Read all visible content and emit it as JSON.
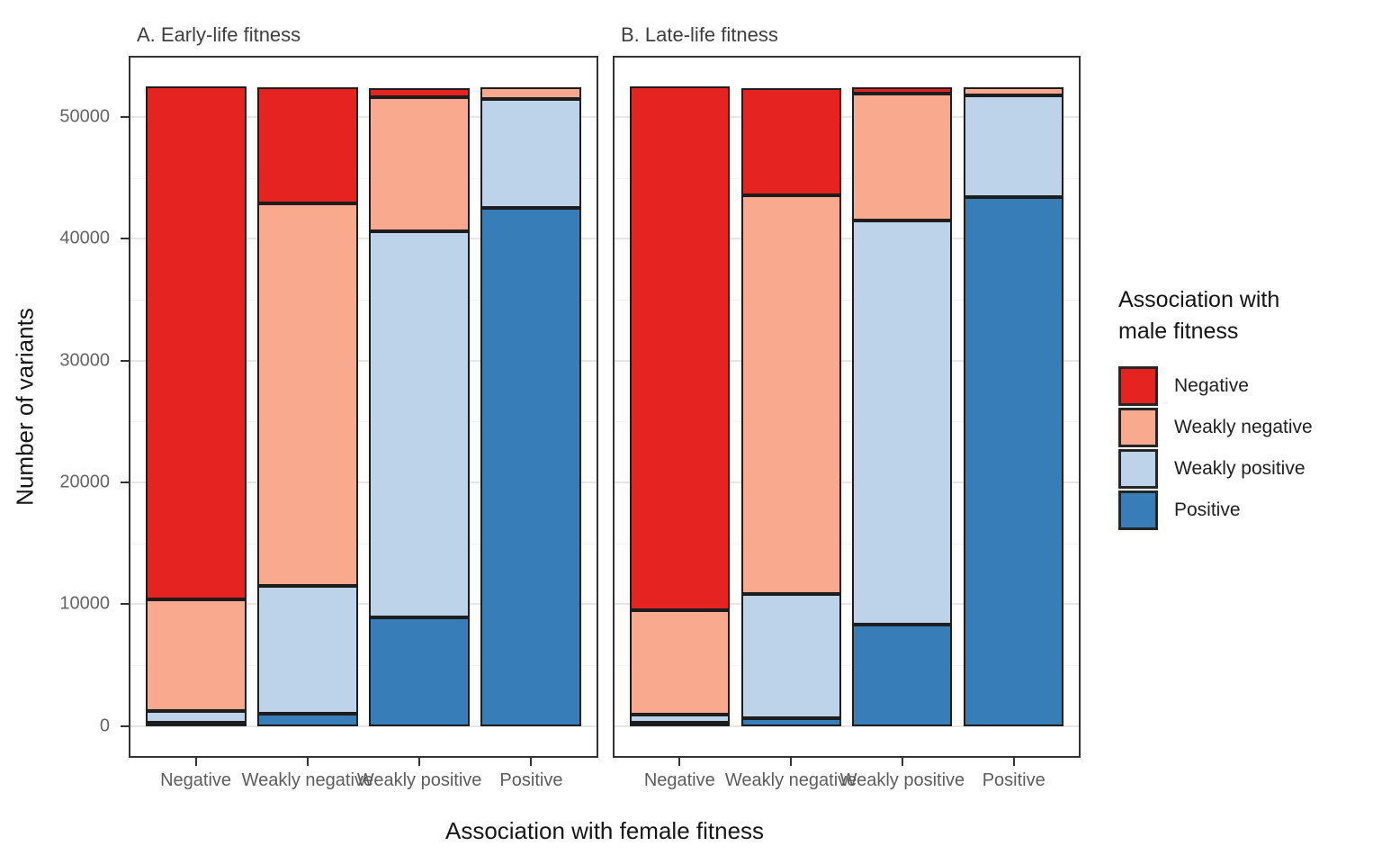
{
  "axes": {
    "y_title": "Number of variants",
    "x_title": "Association with female fitness",
    "y_tick_values": [
      0,
      10000,
      20000,
      30000,
      40000,
      50000
    ],
    "y_minor_tick_values": [
      5000,
      15000,
      25000,
      35000,
      45000
    ],
    "x_categories": [
      "Negative",
      "Weakly negative",
      "Weakly positive",
      "Positive"
    ]
  },
  "legend": {
    "title_lines": [
      "Association with",
      "male fitness"
    ],
    "items": [
      {
        "label": "Negative",
        "color": "#e52421"
      },
      {
        "label": "Weakly negative",
        "color": "#f8a98e"
      },
      {
        "label": "Weakly positive",
        "color": "#bdd3ea"
      },
      {
        "label": "Positive",
        "color": "#377eb8"
      }
    ]
  },
  "colors": {
    "negative": "#e52421",
    "weakly_negative": "#f8a98e",
    "weakly_positive": "#bdd3ea",
    "positive": "#377eb8",
    "segment_border": "#1d1d1d",
    "panel_border": "#333333",
    "grid_major": "#e6e6e6"
  },
  "chart_data": [
    {
      "type": "bar",
      "stacked": true,
      "panel_label": "A. Early-life fitness",
      "categories": [
        "Negative",
        "Weakly negative",
        "Weakly positive",
        "Positive"
      ],
      "series": [
        {
          "name": "Negative",
          "color": "#e52421",
          "values": [
            42100,
            9500,
            800,
            0
          ]
        },
        {
          "name": "Weakly negative",
          "color": "#f8a98e",
          "values": [
            9200,
            31400,
            11000,
            900
          ]
        },
        {
          "name": "Weakly positive",
          "color": "#bdd3ea",
          "values": [
            900,
            10500,
            31700,
            9000
          ]
        },
        {
          "name": "Positive",
          "color": "#377eb8",
          "values": [
            200,
            1000,
            8900,
            42500
          ]
        }
      ],
      "bar_totals": [
        52400,
        52400,
        52400,
        52400
      ],
      "xlabel": "Association with female fitness",
      "ylabel": "Number of variants",
      "ylim": [
        0,
        55000
      ],
      "grid": true,
      "legend_position": "right"
    },
    {
      "type": "bar",
      "stacked": true,
      "panel_label": "B. Late-life fitness",
      "categories": [
        "Negative",
        "Weakly negative",
        "Weakly positive",
        "Positive"
      ],
      "series": [
        {
          "name": "Negative",
          "color": "#e52421",
          "values": [
            43000,
            8800,
            500,
            0
          ]
        },
        {
          "name": "Weakly negative",
          "color": "#f8a98e",
          "values": [
            8600,
            32800,
            10400,
            600
          ]
        },
        {
          "name": "Weakly positive",
          "color": "#bdd3ea",
          "values": [
            600,
            10200,
            33200,
            8400
          ]
        },
        {
          "name": "Positive",
          "color": "#377eb8",
          "values": [
            200,
            600,
            8300,
            43400
          ]
        }
      ],
      "bar_totals": [
        52400,
        52400,
        52400,
        52400
      ],
      "xlabel": "Association with female fitness",
      "ylabel": "Number of variants",
      "ylim": [
        0,
        55000
      ],
      "grid": true,
      "legend_position": "right"
    }
  ]
}
